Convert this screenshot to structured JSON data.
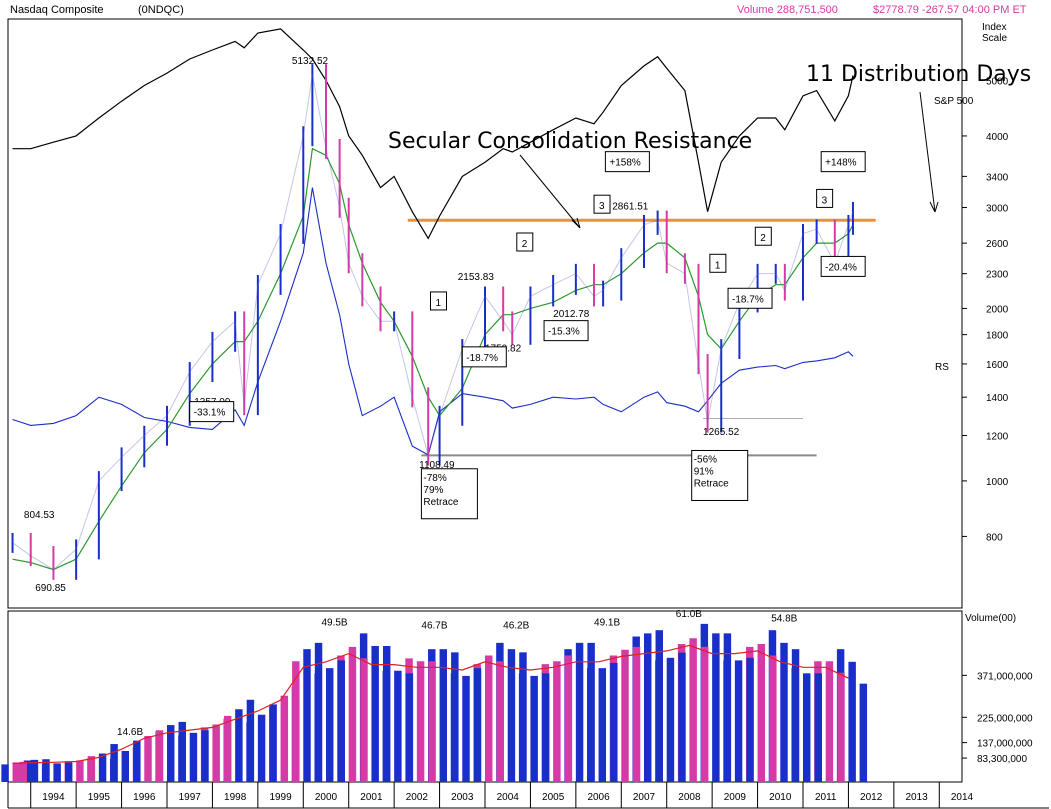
{
  "header": {
    "symbol": "Nasdaq Composite",
    "code": "(0NDQC)",
    "volume": "Volume 288,751,500",
    "price": "$2778.79 -267.57  04:00 PM ET"
  },
  "colors": {
    "up": "#1a2ec9",
    "down": "#d63aa6",
    "ma": "#2a9a2a",
    "sp500": "#000000",
    "rs": "#1a2ec9",
    "resistance": "#f0902e",
    "support": "#8a8a8a",
    "volma": "#e02020"
  },
  "chart_data": [
    {
      "type": "line",
      "title": "",
      "x": [
        1993.6,
        1994.0,
        1994.5,
        1995.0,
        1995.5,
        1996.0,
        1996.5,
        1997.0,
        1997.5,
        1998.0,
        1998.5,
        1998.7,
        1999.0,
        1999.5,
        2000.0,
        2000.2,
        2000.5,
        2000.8,
        2001.0,
        2001.3,
        2001.7,
        2002.0,
        2002.4,
        2002.75,
        2003.0,
        2003.5,
        2004.0,
        2004.4,
        2004.6,
        2005.0,
        2005.5,
        2006.0,
        2006.4,
        2006.6,
        2007.0,
        2007.5,
        2007.8,
        2008.0,
        2008.4,
        2008.7,
        2008.9,
        2009.2,
        2009.6,
        2010.0,
        2010.4,
        2010.6,
        2011.0,
        2011.3,
        2011.7,
        2012.0,
        2012.1
      ],
      "series": [
        {
          "name": "",
          "values": [
            780,
            740,
            700,
            760,
            1000,
            1100,
            1200,
            1300,
            1550,
            1750,
            1900,
            1357,
            2200,
            2700,
            4000,
            5132,
            3800,
            3000,
            2400,
            2100,
            1900,
            1900,
            1400,
            1108,
            1300,
            1700,
            2100,
            1900,
            1800,
            2100,
            2200,
            2300,
            2100,
            2150,
            2450,
            2800,
            2850,
            2400,
            2300,
            1600,
            1265,
            1700,
            2050,
            2300,
            2300,
            2150,
            2700,
            2750,
            2400,
            2800,
            2950
          ]
        },
        {
          "name": "",
          "values": [
            730,
            720,
            700,
            730,
            850,
            980,
            1120,
            1230,
            1420,
            1600,
            1750,
            1750,
            1900,
            2300,
            2900,
            3800,
            3700,
            3300,
            2800,
            2400,
            2050,
            1900,
            1650,
            1400,
            1300,
            1450,
            1800,
            1950,
            1950,
            2000,
            2050,
            2150,
            2200,
            2200,
            2300,
            2500,
            2600,
            2600,
            2450,
            2100,
            1800,
            1700,
            1900,
            2100,
            2200,
            2200,
            2450,
            2600,
            2600,
            2700,
            2800
          ]
        },
        {
          "name": "S&P 500",
          "values": [
            3800,
            3800,
            3900,
            4000,
            4300,
            4600,
            4900,
            5150,
            5450,
            5650,
            5850,
            5700,
            6050,
            6150,
            5650,
            5450,
            5000,
            4500,
            4000,
            3700,
            3250,
            3400,
            2950,
            2650,
            2900,
            3400,
            3600,
            3800,
            3750,
            3900,
            4100,
            4300,
            4200,
            4400,
            4900,
            5300,
            5500,
            5250,
            4800,
            3600,
            2950,
            3600,
            4000,
            4300,
            4300,
            4100,
            4700,
            4800,
            4250,
            4700,
            5100
          ]
        },
        {
          "name": "RS",
          "values": [
            1280,
            1250,
            1260,
            1300,
            1400,
            1360,
            1290,
            1270,
            1240,
            1230,
            1330,
            1250,
            1490,
            1900,
            2500,
            3250,
            2400,
            1950,
            1600,
            1300,
            1350,
            1400,
            1150,
            1110,
            1320,
            1420,
            1400,
            1380,
            1340,
            1360,
            1400,
            1390,
            1400,
            1360,
            1320,
            1400,
            1430,
            1370,
            1350,
            1320,
            1380,
            1480,
            1560,
            1580,
            1590,
            1570,
            1610,
            1620,
            1640,
            1680,
            1650
          ]
        }
      ],
      "ylabel": "Index Scale",
      "yticks": [
        800,
        1000,
        1200,
        1400,
        1600,
        1800,
        2000,
        2300,
        2600,
        3000,
        3400,
        4000,
        5000
      ],
      "ylim": [
        600,
        6400
      ],
      "xlim": [
        1993.5,
        2014.5
      ],
      "xticks": [
        "1994",
        "1995",
        "1996",
        "1997",
        "1998",
        "1999",
        "2000",
        "2001",
        "2002",
        "2003",
        "2004",
        "2005",
        "2006",
        "2007",
        "2008",
        "2009",
        "2010",
        "2011",
        "2012",
        "2013",
        "2014"
      ],
      "resistance_level": 2850,
      "support_levels": [
        1108,
        1265
      ],
      "labels": [
        "804.53",
        "690.85",
        "5132.52",
        "1357.09",
        "1108.49",
        "2153.83",
        "1750.82",
        "2012.78",
        "2861.51",
        "1265.52"
      ],
      "pct_boxes": [
        "-33.1%",
        "-18.7%",
        "-15.3%",
        "+158%",
        "-18.7%",
        "-20.4%",
        "+148%"
      ],
      "retrace_boxes": [
        {
          "lines": [
            "-78%",
            "79%",
            "Retrace"
          ]
        },
        {
          "lines": [
            "-56%",
            "91%",
            "Retrace"
          ]
        }
      ],
      "count_boxes": [
        "1",
        "2",
        "3",
        "1",
        "2",
        "3"
      ],
      "annotations": {
        "resistance": "Secular Consolidation Resistance",
        "distribution": "11 Distribution Days"
      }
    },
    {
      "type": "bar",
      "title": "",
      "ylabel": "Volume(00)",
      "yticks": [
        "371,000,000",
        "225,000,000",
        "137,000,000",
        "83,300,000"
      ],
      "peak_labels": [
        "14.6B",
        "49.5B",
        "46.7B",
        "46.2B",
        "49.1B",
        "61.0B",
        "54.8B"
      ],
      "x": [
        1993.6,
        1994.0,
        1994.5,
        1995.0,
        1995.5,
        1996.0,
        1996.5,
        1997.0,
        1997.5,
        1998.0,
        1998.5,
        1999.0,
        1999.5,
        2000.0,
        2000.5,
        2001.0,
        2001.5,
        2002.0,
        2002.5,
        2003.0,
        2003.5,
        2004.0,
        2004.5,
        2005.0,
        2005.5,
        2006.0,
        2006.5,
        2007.0,
        2007.5,
        2008.0,
        2008.5,
        2009.0,
        2009.5,
        2010.0,
        2010.5,
        2011.0,
        2011.5,
        2012.0
      ],
      "values": [
        68,
        70,
        72,
        75,
        90,
        120,
        160,
        180,
        190,
        200,
        230,
        260,
        300,
        420,
        440,
        470,
        430,
        430,
        420,
        420,
        410,
        440,
        420,
        410,
        420,
        440,
        440,
        460,
        470,
        480,
        500,
        470,
        470,
        480,
        440,
        420,
        420,
        380
      ]
    }
  ]
}
